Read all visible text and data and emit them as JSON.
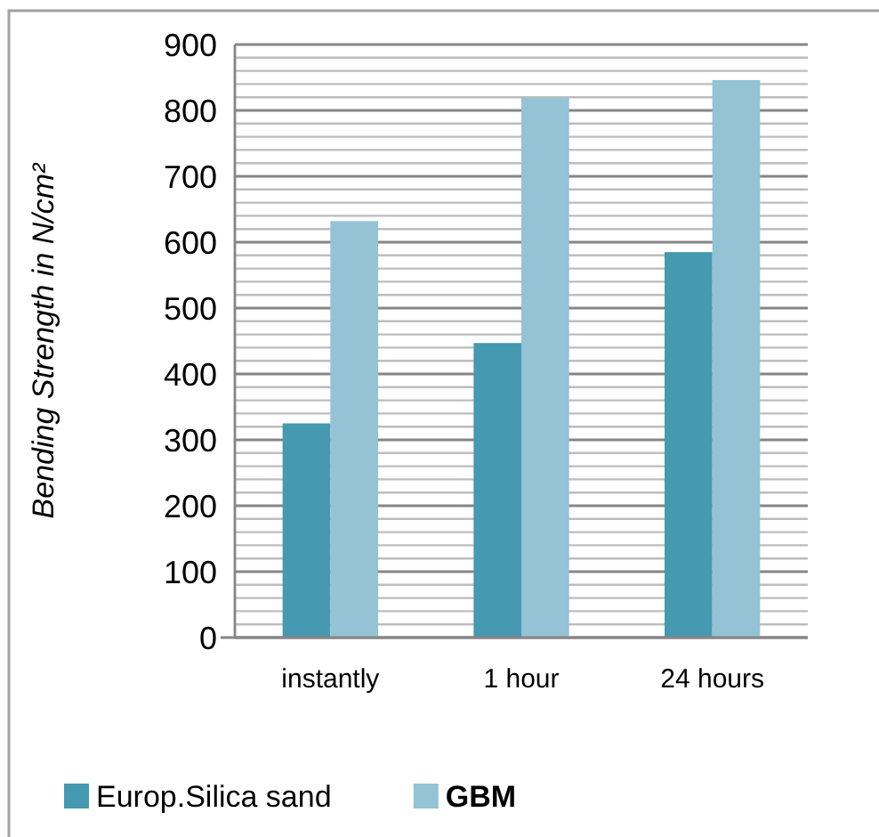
{
  "chart_data": {
    "type": "bar",
    "ylabel": "Bending Strength in N/cm²",
    "categories": [
      "instantly",
      "1 hour",
      "24 hours"
    ],
    "series": [
      {
        "name": "Europ.Silica sand",
        "color": "#4599b0",
        "values": [
          325,
          447,
          585
        ]
      },
      {
        "name": "GBM",
        "color": "#93c3d5",
        "values": [
          632,
          819,
          846
        ]
      }
    ],
    "ylim": [
      0,
      900
    ],
    "yticks": [
      0,
      {
        "value": 20,
        "label": null
      },
      {
        "value": 40,
        "label": null
      },
      {
        "value": 60,
        "label": null
      },
      {
        "value": 80,
        "label": null
      },
      100,
      {
        "value": 120,
        "label": null
      },
      {
        "value": 140,
        "label": null
      },
      {
        "value": 160,
        "label": null
      },
      {
        "value": 180,
        "label": null
      },
      200,
      {
        "value": 220,
        "label": null
      },
      {
        "value": 240,
        "label": null
      },
      {
        "value": 260,
        "label": null
      },
      {
        "value": 280,
        "label": null
      },
      300,
      {
        "value": 320,
        "label": null
      },
      {
        "value": 340,
        "label": null
      },
      {
        "value": 360,
        "label": null
      },
      {
        "value": 380,
        "label": null
      },
      400,
      {
        "value": 420,
        "label": null
      },
      {
        "value": 440,
        "label": null
      },
      {
        "value": 460,
        "label": null
      },
      {
        "value": 480,
        "label": null
      },
      500,
      {
        "value": 520,
        "label": null
      },
      {
        "value": 540,
        "label": null
      },
      {
        "value": 560,
        "label": null
      },
      {
        "value": 580,
        "label": null
      },
      600,
      {
        "value": 620,
        "label": null
      },
      {
        "value": 640,
        "label": null
      },
      {
        "value": 660,
        "label": null
      },
      {
        "value": 680,
        "label": null
      },
      700,
      {
        "value": 720,
        "label": null
      },
      {
        "value": 740,
        "label": null
      },
      {
        "value": 760,
        "label": null
      },
      {
        "value": 780,
        "label": null
      },
      800,
      {
        "value": 820,
        "label": null
      },
      {
        "value": 840,
        "label": null
      },
      {
        "value": 860,
        "label": null
      },
      {
        "value": 880,
        "label": null
      },
      900
    ],
    "grid": true,
    "legend": "bottom"
  }
}
